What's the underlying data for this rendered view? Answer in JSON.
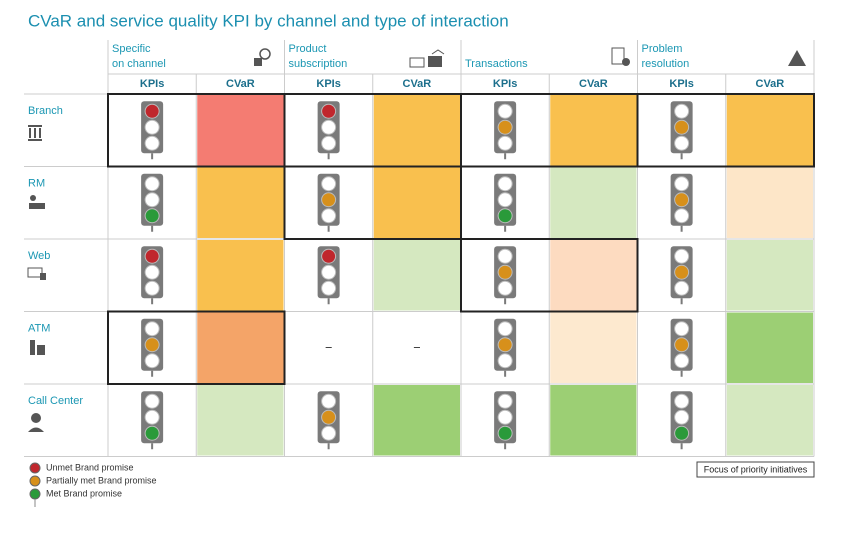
{
  "title": "CVaR and service quality KPI by channel and type of interaction",
  "groups": [
    {
      "label": [
        "Specific",
        "on channel"
      ]
    },
    {
      "label": [
        "Product",
        "subscription"
      ]
    },
    {
      "label": [
        "Transactions"
      ]
    },
    {
      "label": [
        "Problem",
        "resolution"
      ]
    }
  ],
  "subheaders": [
    "KPIs",
    "CVaR"
  ],
  "rows": [
    {
      "label": "Branch",
      "cells": [
        {
          "light": "red",
          "cvar": "#f47c72",
          "focus": true
        },
        {
          "light": "red",
          "cvar": "#f9c04e",
          "focus": true
        },
        {
          "light": "amber",
          "cvar": "#f9c04e",
          "focus": true
        },
        {
          "light": "amber",
          "cvar": "#f9c04e",
          "focus": true
        }
      ]
    },
    {
      "label": "RM",
      "cells": [
        {
          "light": "green",
          "cvar": "#f9c04e",
          "focus": false
        },
        {
          "light": "amber",
          "cvar": "#f9c04e",
          "focus": true
        },
        {
          "light": "green",
          "cvar": "#d5e8c0",
          "focus": false
        },
        {
          "light": "amber",
          "cvar": "#fde6c8",
          "focus": false
        }
      ]
    },
    {
      "label": "Web",
      "cells": [
        {
          "light": "red",
          "cvar": "#f9c04e",
          "focus": false
        },
        {
          "light": "red",
          "cvar": "#d5e8c0",
          "focus": false
        },
        {
          "light": "amber",
          "cvar": "#fddbc0",
          "focus": true
        },
        {
          "light": "amber",
          "cvar": "#d5e8c0",
          "focus": false
        }
      ]
    },
    {
      "label": "ATM",
      "cells": [
        {
          "light": "amber",
          "cvar": "#f4a468",
          "focus": true
        },
        {
          "kpi_text": "–",
          "cvar_text": "–",
          "focus": false
        },
        {
          "light": "amber",
          "cvar": "#fde9cf",
          "focus": false
        },
        {
          "light": "amber",
          "cvar": "#9ccf74",
          "focus": false
        }
      ]
    },
    {
      "label": "Call Center",
      "cells": [
        {
          "light": "green",
          "cvar": "#d5e8c0",
          "focus": false
        },
        {
          "light": "amber",
          "cvar": "#9ccf74",
          "focus": false
        },
        {
          "light": "green",
          "cvar": "#9ccf74",
          "focus": false
        },
        {
          "light": "green",
          "cvar": "#d5e8c0",
          "focus": false
        }
      ]
    }
  ],
  "light_colors": {
    "red": "#c0272d",
    "amber": "#d7901b",
    "green": "#2a9a3a"
  },
  "legend": [
    {
      "label": "Unmet Brand promise",
      "light": "red"
    },
    {
      "label": "Partially met Brand promise",
      "light": "amber"
    },
    {
      "label": "Met Brand promise",
      "light": "green"
    }
  ],
  "focus_legend": "Focus of priority initiatives"
}
